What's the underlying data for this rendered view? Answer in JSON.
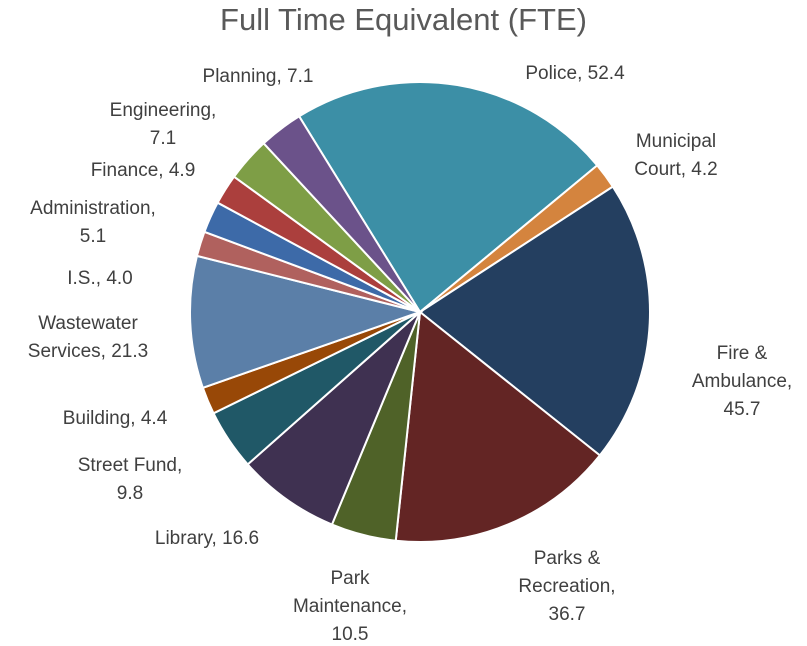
{
  "chart_data": {
    "type": "pie",
    "title": "Full Time Equivalent (FTE)",
    "categories": [
      "Police",
      "Municipal Court",
      "Fire & Ambulance",
      "Parks & Recreation",
      "Park Maintenance",
      "Library",
      "Street Fund",
      "Building",
      "Wastewater Services",
      "I.S.",
      "Administration",
      "Finance",
      "Engineering",
      "Planning"
    ],
    "values": [
      52.4,
      4.2,
      45.7,
      36.7,
      10.5,
      16.6,
      9.8,
      4.4,
      21.3,
      4.0,
      5.1,
      4.9,
      7.1,
      7.1
    ],
    "value_labels": [
      "Police, 52.4",
      "Municipal Court, 4.2",
      "Fire & Ambulance, 45.7",
      "Parks & Recreation, 36.7",
      "Park Maintenance, 10.5",
      "Library, 16.6",
      "Street Fund, 9.8",
      "Building, 4.4",
      "Wastewater Services, 21.3",
      "I.S., 4.0",
      "Administration, 5.1",
      "Finance, 4.9",
      "Engineering, 7.1",
      "Planning, 7.1"
    ],
    "colors": [
      "#3c8fa6",
      "#d4843e",
      "#243f60",
      "#632524",
      "#4f6228",
      "#3f3151",
      "#205867",
      "#984807",
      "#5b7fa8",
      "#b0615e",
      "#3d6aa8",
      "#ab3f3d",
      "#7e9e46",
      "#6b528a"
    ]
  }
}
